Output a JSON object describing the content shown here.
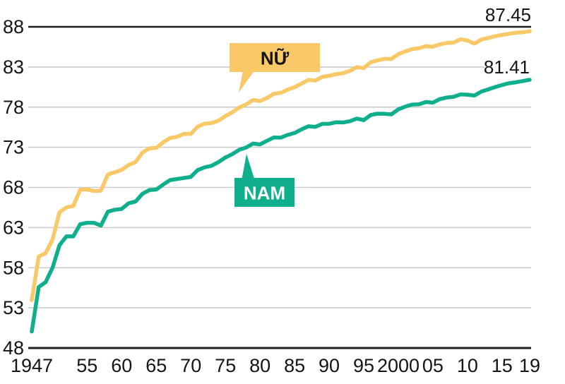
{
  "chart_data": {
    "type": "line",
    "grid": "horizontal-only",
    "legend": "callout-boxes-on-plot",
    "xlim": [
      1947,
      2019
    ],
    "ylim": [
      48,
      88
    ],
    "y_ticks": [
      48,
      53,
      58,
      63,
      68,
      73,
      78,
      83,
      88
    ],
    "x_tick_years": [
      1947,
      1955,
      1960,
      1965,
      1970,
      1975,
      1980,
      1985,
      1990,
      1995,
      2000,
      2005,
      2010,
      2015,
      2019
    ],
    "x_tick_labels": [
      "1947",
      "55",
      "60",
      "65",
      "70",
      "75",
      "80",
      "85",
      "90",
      "95",
      "2000",
      "05",
      "10",
      "15",
      "19"
    ],
    "years": [
      1947,
      1948,
      1949,
      1950,
      1951,
      1952,
      1953,
      1954,
      1955,
      1956,
      1957,
      1958,
      1959,
      1960,
      1961,
      1962,
      1963,
      1964,
      1965,
      1966,
      1967,
      1968,
      1969,
      1970,
      1971,
      1972,
      1973,
      1974,
      1975,
      1976,
      1977,
      1978,
      1979,
      1980,
      1981,
      1982,
      1983,
      1984,
      1985,
      1986,
      1987,
      1988,
      1989,
      1990,
      1991,
      1992,
      1993,
      1994,
      1995,
      1996,
      1997,
      1998,
      1999,
      2000,
      2001,
      2002,
      2003,
      2004,
      2005,
      2006,
      2007,
      2008,
      2009,
      2010,
      2011,
      2012,
      2013,
      2014,
      2015,
      2016,
      2017,
      2018,
      2019
    ],
    "series": [
      {
        "name": "NỮ",
        "color": "#F9C967",
        "end_label": "87.45",
        "values": [
          53.96,
          59.4,
          59.8,
          61.5,
          64.9,
          65.5,
          65.7,
          67.69,
          67.75,
          67.54,
          67.6,
          69.61,
          69.88,
          70.19,
          70.79,
          71.16,
          72.34,
          72.87,
          72.92,
          73.61,
          74.15,
          74.3,
          74.67,
          74.66,
          75.58,
          75.94,
          76.02,
          76.31,
          76.89,
          77.35,
          77.95,
          78.33,
          78.89,
          78.76,
          79.13,
          79.66,
          79.78,
          80.18,
          80.48,
          80.93,
          81.39,
          81.3,
          81.77,
          81.9,
          82.11,
          82.22,
          82.51,
          82.98,
          82.85,
          83.59,
          83.82,
          84.01,
          83.99,
          84.6,
          84.93,
          85.23,
          85.33,
          85.59,
          85.52,
          85.81,
          85.99,
          86.05,
          86.44,
          86.3,
          85.9,
          86.41,
          86.61,
          86.83,
          86.99,
          87.14,
          87.26,
          87.32,
          87.45
        ]
      },
      {
        "name": "NAM",
        "color": "#0FAE8D",
        "end_label": "81.41",
        "values": [
          50.06,
          55.6,
          56.2,
          58.0,
          60.8,
          61.9,
          61.9,
          63.41,
          63.6,
          63.59,
          63.24,
          64.98,
          65.21,
          65.32,
          66.03,
          66.23,
          67.21,
          67.67,
          67.74,
          68.35,
          68.91,
          69.05,
          69.18,
          69.31,
          70.17,
          70.5,
          70.7,
          71.16,
          71.73,
          72.15,
          72.69,
          72.97,
          73.46,
          73.35,
          73.79,
          74.22,
          74.2,
          74.54,
          74.78,
          75.23,
          75.61,
          75.54,
          75.91,
          75.92,
          76.11,
          76.09,
          76.25,
          76.57,
          76.38,
          77.01,
          77.19,
          77.16,
          77.1,
          77.72,
          78.07,
          78.32,
          78.36,
          78.64,
          78.56,
          79.0,
          79.19,
          79.29,
          79.59,
          79.55,
          79.44,
          79.94,
          80.21,
          80.5,
          80.75,
          80.98,
          81.09,
          81.25,
          81.41
        ]
      }
    ],
    "colors": {
      "background": "#FFFFFF",
      "grid": "#CCCCCC",
      "axis": "#1D1D1D",
      "text": "#141414"
    }
  }
}
